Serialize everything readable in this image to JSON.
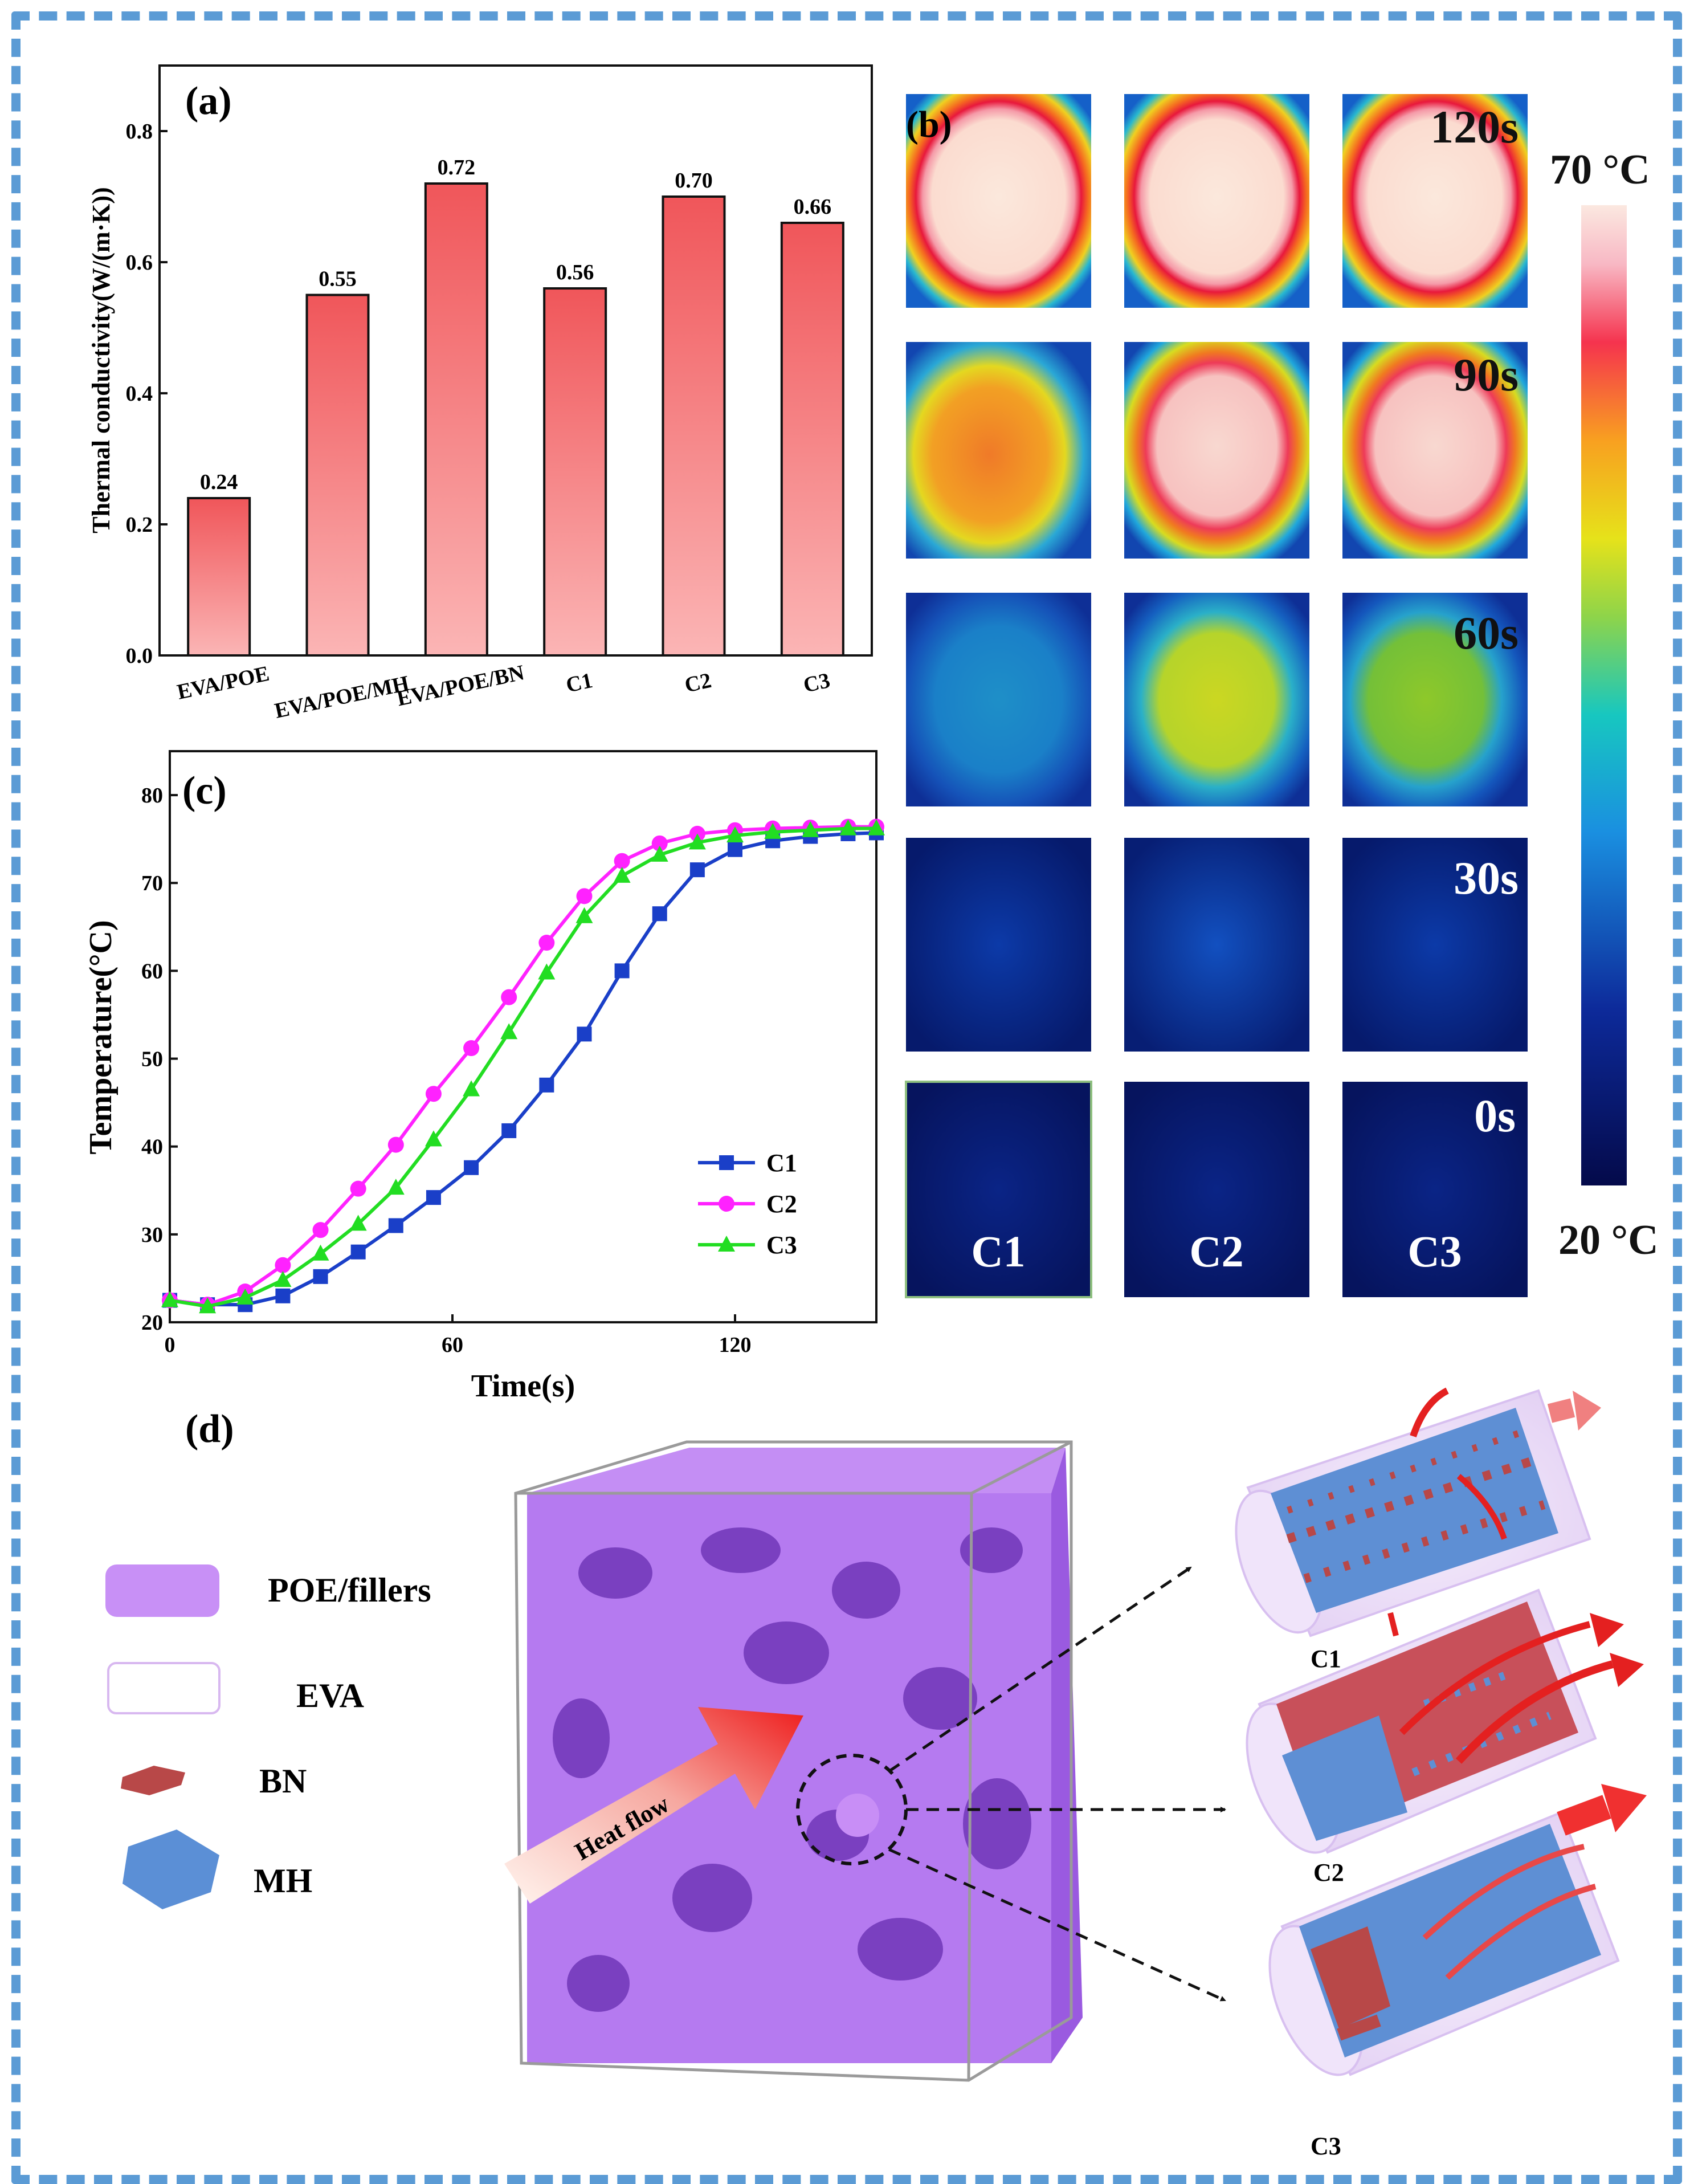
{
  "colors": {
    "frame": "#5b9bd5",
    "bar_top": "#f0565a",
    "bar_bottom": "#fbb3b3",
    "c1": "#1a3fc8",
    "c2": "#ff22ff",
    "c3": "#22dd22",
    "poe": "#c488f6",
    "bn": "#b84848",
    "mh": "#5b8fd6"
  },
  "panels": {
    "a": "(a)",
    "b": "(b)",
    "c": "(c)",
    "d": "(d)"
  },
  "chart_data": [
    {
      "type": "bar",
      "id": "a",
      "title": "",
      "categories": [
        "EVA/POE",
        "EVA/POE/MH",
        "EVA/POE/BN",
        "C1",
        "C2",
        "C3"
      ],
      "values": [
        0.24,
        0.55,
        0.72,
        0.56,
        0.7,
        0.66
      ],
      "value_labels": [
        "0.24",
        "0.55",
        "0.72",
        "0.56",
        "0.70",
        "0.66"
      ],
      "xlabel": "",
      "ylabel": "Thermal conductivity(W/(m·K))",
      "ylim": [
        0,
        0.9
      ],
      "yticks": [
        "0.0",
        "0.2",
        "0.4",
        "0.6",
        "0.8"
      ]
    },
    {
      "type": "line",
      "id": "c",
      "xlabel": "Time(s)",
      "ylabel": "Temperature(°C)",
      "xlim": [
        0,
        150
      ],
      "ylim": [
        20,
        85
      ],
      "xticks": [
        "0",
        "60",
        "120"
      ],
      "yticks": [
        "20",
        "30",
        "40",
        "50",
        "60",
        "70",
        "80"
      ],
      "x": [
        0,
        8,
        16,
        24,
        32,
        40,
        48,
        56,
        64,
        72,
        80,
        88,
        96,
        104,
        112,
        120,
        128,
        136,
        144,
        150
      ],
      "series": [
        {
          "name": "C1",
          "marker": "square",
          "values": [
            22.5,
            22,
            22,
            23,
            25.2,
            28,
            31,
            34.2,
            37.6,
            41.8,
            47,
            52.8,
            60,
            66.5,
            71.5,
            73.8,
            74.8,
            75.3,
            75.6,
            75.7
          ]
        },
        {
          "name": "C2",
          "marker": "circle",
          "values": [
            22.5,
            22,
            23.5,
            26.5,
            30.5,
            35.2,
            40.2,
            46,
            51.2,
            57,
            63.2,
            68.5,
            72.5,
            74.5,
            75.6,
            76,
            76.2,
            76.3,
            76.4,
            76.4
          ]
        },
        {
          "name": "C3",
          "marker": "triangle",
          "values": [
            22.5,
            21.8,
            22.8,
            24.8,
            27.8,
            31.2,
            35.3,
            40.8,
            46.5,
            53,
            59.8,
            66.2,
            70.8,
            73.2,
            74.6,
            75.4,
            75.8,
            76,
            76.2,
            76.2
          ]
        }
      ]
    }
  ],
  "thermal": {
    "scale_max": "70 °C",
    "scale_min": "20 °C",
    "times": [
      "120s",
      "90s",
      "60s",
      "30s",
      "0s"
    ],
    "samples": [
      "C1",
      "C2",
      "C3"
    ]
  },
  "schematic": {
    "legend": [
      "POE/fillers",
      "EVA",
      "BN",
      "MH"
    ],
    "heat_flow": "Heat flow",
    "tubes": [
      "C1",
      "C2",
      "C3"
    ]
  }
}
